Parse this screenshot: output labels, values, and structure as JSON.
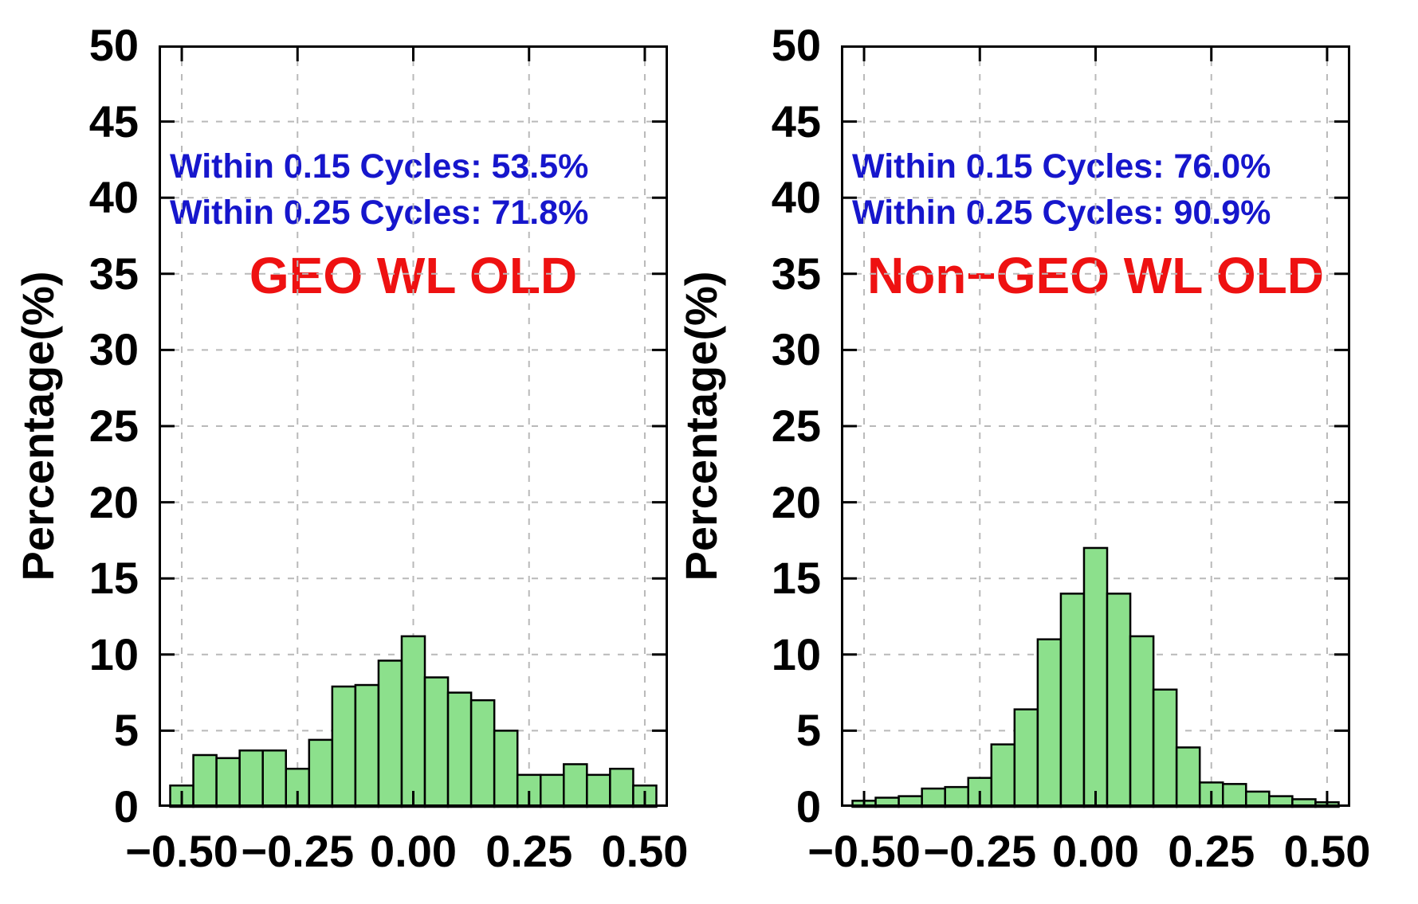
{
  "page": {
    "background": "#ffffff"
  },
  "colors": {
    "bar_fill": "#8ce08c",
    "bar_border": "#000000",
    "annotation_blue": "#1616cc",
    "title_red": "#ee1111",
    "grid_gray": "#b9b9b9",
    "axis_black": "#000000"
  },
  "chart_data": [
    {
      "type": "bar",
      "title": "GEO WL OLD",
      "annotations": [
        "Within 0.15 Cycles: 53.5%",
        "Within 0.25 Cycles: 71.8%"
      ],
      "ylabel": "Percentage(%)",
      "xlabel": "",
      "bin_width": 0.05,
      "xlim": [
        -0.55,
        0.55
      ],
      "ylim": [
        0,
        50
      ],
      "grid": true,
      "categories": [
        -0.5,
        -0.45,
        -0.4,
        -0.35,
        -0.3,
        -0.25,
        -0.2,
        -0.15,
        -0.1,
        -0.05,
        0.0,
        0.05,
        0.1,
        0.15,
        0.2,
        0.25,
        0.3,
        0.35,
        0.4,
        0.45,
        0.5
      ],
      "values": [
        1.4,
        3.4,
        3.2,
        3.7,
        3.7,
        2.5,
        4.4,
        7.9,
        8.0,
        9.6,
        11.2,
        8.5,
        7.5,
        7.0,
        5.0,
        2.1,
        2.1,
        2.8,
        2.1,
        2.5,
        1.4
      ],
      "x_ticks": [
        -0.5,
        -0.25,
        0.0,
        0.25,
        0.5
      ],
      "x_tick_labels": [
        "−0.50",
        "−0.25",
        "0.00",
        "0.25",
        "0.50"
      ],
      "y_ticks": [
        0,
        5,
        10,
        15,
        20,
        25,
        30,
        35,
        40,
        45,
        50
      ]
    },
    {
      "type": "bar",
      "title": "Non−GEO WL OLD",
      "annotations": [
        "Within 0.15 Cycles: 76.0%",
        "Within 0.25 Cycles: 90.9%"
      ],
      "ylabel": "Percentage(%)",
      "xlabel": "",
      "bin_width": 0.05,
      "xlim": [
        -0.55,
        0.55
      ],
      "ylim": [
        0,
        50
      ],
      "grid": true,
      "categories": [
        -0.5,
        -0.45,
        -0.4,
        -0.35,
        -0.3,
        -0.25,
        -0.2,
        -0.15,
        -0.1,
        -0.05,
        0.0,
        0.05,
        0.1,
        0.15,
        0.2,
        0.25,
        0.3,
        0.35,
        0.4,
        0.45,
        0.5
      ],
      "values": [
        0.4,
        0.6,
        0.7,
        1.2,
        1.3,
        1.9,
        4.1,
        6.4,
        11.0,
        14.0,
        17.0,
        14.0,
        11.2,
        7.7,
        3.9,
        1.6,
        1.5,
        1.0,
        0.7,
        0.5,
        0.3
      ],
      "x_ticks": [
        -0.5,
        -0.25,
        0.0,
        0.25,
        0.5
      ],
      "x_tick_labels": [
        "−0.50",
        "−0.25",
        "0.00",
        "0.25",
        "0.50"
      ],
      "y_ticks": [
        0,
        5,
        10,
        15,
        20,
        25,
        30,
        35,
        40,
        45,
        50
      ]
    }
  ]
}
